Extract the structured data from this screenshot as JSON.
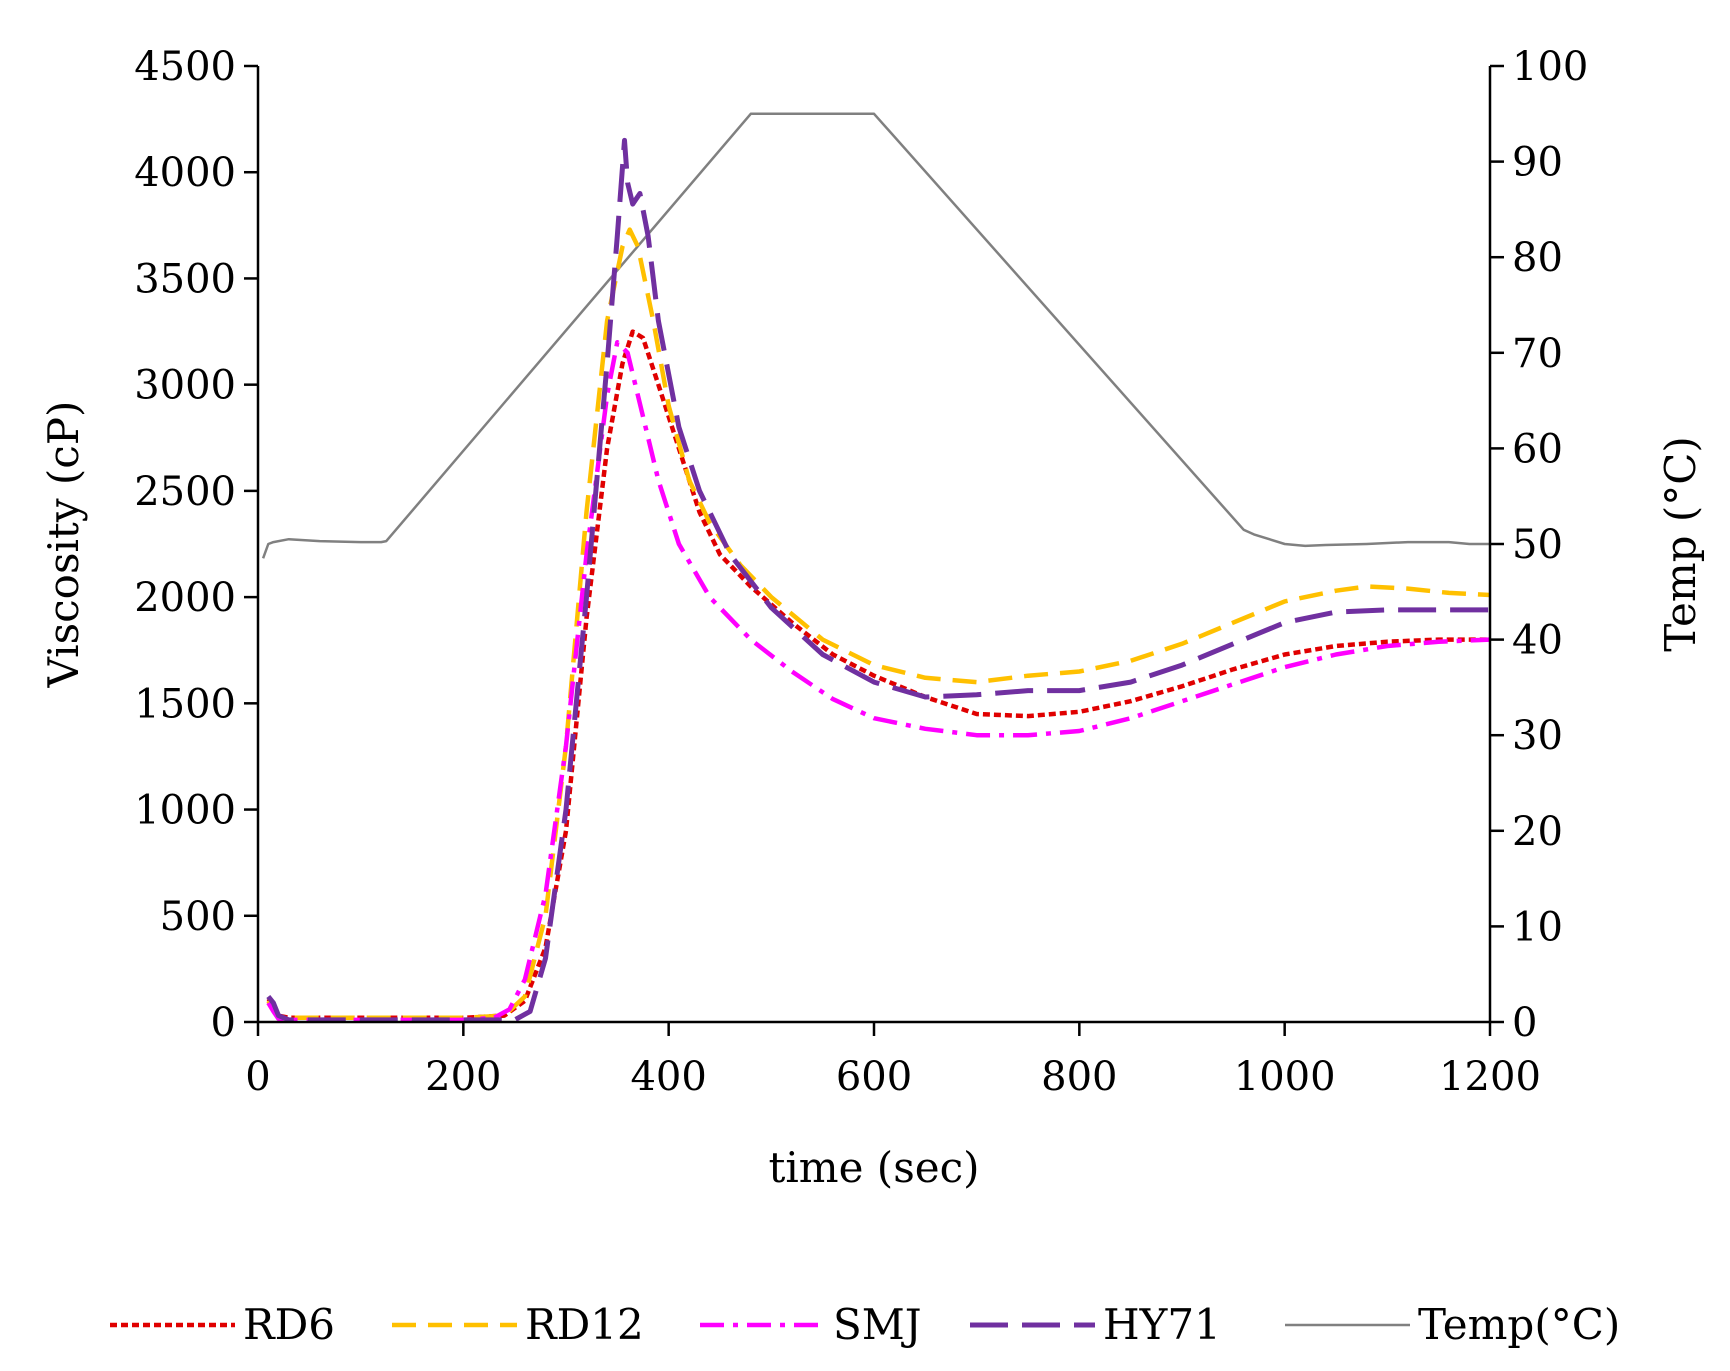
{
  "chart_data": {
    "type": "line",
    "title": "",
    "xlabel": "time (sec)",
    "ylabel": "Viscosity (cP)",
    "y2label": "Temp (°C)",
    "xlim": [
      0,
      1200
    ],
    "ylim": [
      0,
      4500
    ],
    "y2lim": [
      0,
      100
    ],
    "xticks": [
      0,
      200,
      400,
      600,
      800,
      1000,
      1200
    ],
    "yticks": [
      0,
      500,
      1000,
      1500,
      2000,
      2500,
      3000,
      3500,
      4000,
      4500
    ],
    "y2ticks": [
      0,
      10,
      20,
      30,
      40,
      50,
      60,
      70,
      80,
      90,
      100
    ],
    "grid": false,
    "legend_position": "bottom",
    "series": [
      {
        "name": "RD6",
        "axis": "left",
        "color": "#e00000",
        "dash": "dotted",
        "x": [
          10,
          15,
          20,
          30,
          60,
          100,
          150,
          200,
          240,
          260,
          280,
          300,
          320,
          340,
          355,
          365,
          375,
          390,
          410,
          430,
          450,
          480,
          520,
          560,
          600,
          650,
          700,
          750,
          800,
          850,
          900,
          950,
          1000,
          1050,
          1100,
          1150,
          1200
        ],
        "values": [
          110,
          80,
          30,
          20,
          20,
          20,
          20,
          20,
          30,
          100,
          350,
          900,
          1900,
          2700,
          3100,
          3250,
          3220,
          3000,
          2700,
          2400,
          2200,
          2050,
          1880,
          1730,
          1630,
          1530,
          1450,
          1440,
          1460,
          1510,
          1580,
          1660,
          1730,
          1770,
          1790,
          1800,
          1800
        ]
      },
      {
        "name": "RD12",
        "axis": "left",
        "color": "#ffc000",
        "dash": "dashed",
        "x": [
          10,
          15,
          20,
          30,
          60,
          100,
          150,
          200,
          240,
          260,
          280,
          300,
          320,
          340,
          355,
          362,
          370,
          385,
          400,
          420,
          440,
          470,
          500,
          550,
          600,
          650,
          700,
          750,
          800,
          850,
          900,
          950,
          1000,
          1050,
          1080,
          1120,
          1160,
          1200
        ],
        "values": [
          100,
          60,
          20,
          20,
          20,
          20,
          20,
          20,
          30,
          120,
          500,
          1300,
          2400,
          3300,
          3650,
          3730,
          3650,
          3300,
          2900,
          2550,
          2350,
          2150,
          2000,
          1800,
          1680,
          1620,
          1600,
          1630,
          1650,
          1700,
          1780,
          1880,
          1980,
          2030,
          2050,
          2040,
          2020,
          2010
        ]
      },
      {
        "name": "SMJ",
        "axis": "left",
        "color": "#ff00ff",
        "dash": "dashdot",
        "x": [
          10,
          15,
          20,
          30,
          60,
          100,
          150,
          200,
          230,
          245,
          260,
          280,
          300,
          320,
          340,
          350,
          360,
          375,
          390,
          410,
          440,
          480,
          520,
          560,
          600,
          650,
          700,
          750,
          800,
          850,
          900,
          950,
          1000,
          1050,
          1100,
          1150,
          1200
        ],
        "values": [
          90,
          50,
          15,
          10,
          10,
          10,
          10,
          10,
          20,
          60,
          200,
          600,
          1300,
          2200,
          2950,
          3200,
          3150,
          2850,
          2550,
          2250,
          2000,
          1800,
          1650,
          1520,
          1430,
          1380,
          1350,
          1350,
          1370,
          1430,
          1510,
          1590,
          1670,
          1730,
          1770,
          1790,
          1800
        ]
      },
      {
        "name": "HY71",
        "axis": "left",
        "color": "#7030a0",
        "dash": "longdash",
        "x": [
          10,
          15,
          20,
          30,
          60,
          100,
          150,
          200,
          250,
          265,
          280,
          300,
          320,
          340,
          350,
          357,
          360,
          365,
          372,
          380,
          390,
          410,
          430,
          460,
          500,
          550,
          600,
          650,
          700,
          750,
          800,
          850,
          900,
          950,
          1000,
          1050,
          1100,
          1150,
          1200
        ],
        "values": [
          120,
          90,
          30,
          10,
          10,
          10,
          10,
          10,
          10,
          50,
          300,
          1000,
          2000,
          3100,
          3700,
          4150,
          3950,
          3850,
          3900,
          3700,
          3300,
          2800,
          2500,
          2200,
          1950,
          1730,
          1600,
          1530,
          1540,
          1560,
          1560,
          1600,
          1680,
          1780,
          1880,
          1930,
          1940,
          1940,
          1940
        ]
      },
      {
        "name": "Temp(°C)",
        "axis": "right",
        "color": "#808080",
        "dash": "solid",
        "x": [
          5,
          10,
          15,
          30,
          60,
          100,
          120,
          125,
          480,
          600,
          960,
          970,
          1000,
          1020,
          1040,
          1080,
          1120,
          1160,
          1180,
          1200
        ],
        "values": [
          48.5,
          50,
          50.2,
          50.5,
          50.3,
          50.2,
          50.2,
          50.3,
          95,
          95,
          51.5,
          51,
          50,
          49.8,
          49.9,
          50,
          50.2,
          50.2,
          50,
          50
        ]
      }
    ]
  }
}
